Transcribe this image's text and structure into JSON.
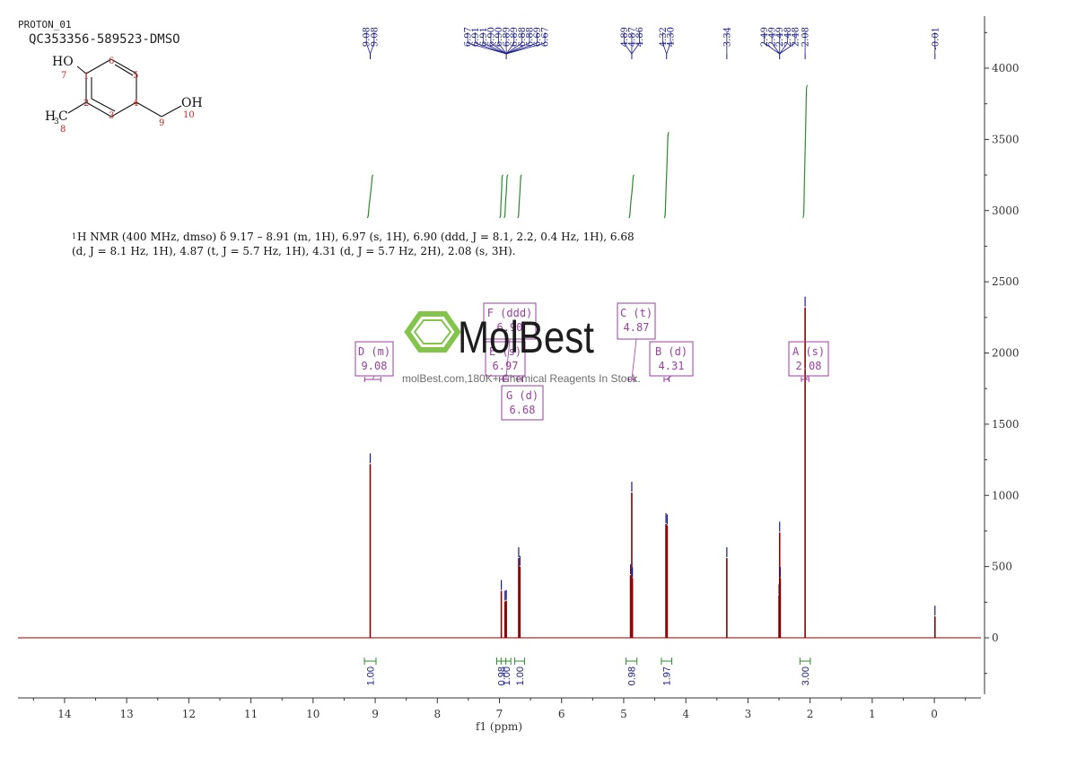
{
  "header": {
    "experiment": "PROTON_01",
    "sample": "QC353356-589523-DMSO"
  },
  "structure": {
    "atoms": [
      {
        "label": "HO",
        "num": "7"
      },
      {
        "label": "1",
        "num": ""
      },
      {
        "label": "6",
        "num": ""
      },
      {
        "label": "5",
        "num": ""
      },
      {
        "label": "4",
        "num": ""
      },
      {
        "label": "3",
        "num": ""
      },
      {
        "label": "2",
        "num": ""
      },
      {
        "label": "9",
        "num": ""
      },
      {
        "label": "OH",
        "num": "10"
      },
      {
        "label": "H",
        "sub": "3",
        "tail": "C",
        "num": "8"
      }
    ]
  },
  "nmr_text": {
    "line1_sup": "1",
    "line1": "H NMR (400 MHz, dmso) δ 9.17 – 8.91 (m, 1H), 6.97 (s, 1H), 6.90 (ddd, J = 8.1, 2.2, 0.4 Hz, 1H), 6.68",
    "line2": "(d, J = 8.1 Hz, 1H), 4.87 (t, J = 5.7 Hz, 1H), 4.31 (d, J = 5.7 Hz, 2H), 2.08 (s, 3H)."
  },
  "watermark": {
    "brand": "MolBest",
    "tagline": "molBest.com,180K+ Chemical Reagents In Stock."
  },
  "colors": {
    "spectrum": "#8b0000",
    "peak_label": "#1a1a8c",
    "integral": "#2e8b2e",
    "multiplet_box": "#9b3fa0",
    "axis": "#333333",
    "watermark_green": "#7dc242"
  },
  "chart_data": {
    "type": "line",
    "title": "",
    "xlabel": "f1 (ppm)",
    "ylabel": "",
    "xlim": [
      14.75,
      -0.75
    ],
    "x_reversed": true,
    "ylim": [
      -400,
      4350
    ],
    "xticks": [
      14,
      13,
      12,
      11,
      10,
      9,
      8,
      7,
      6,
      5,
      4,
      3,
      2,
      1,
      0
    ],
    "yticks": [
      0,
      500,
      1000,
      1500,
      2000,
      2500,
      3000,
      3500,
      4000
    ],
    "peaks": [
      {
        "ppm": 9.08,
        "height": 1220
      },
      {
        "ppm": 6.97,
        "height": 330
      },
      {
        "ppm": 6.91,
        "height": 255
      },
      {
        "ppm": 6.89,
        "height": 260
      },
      {
        "ppm": 6.69,
        "height": 560
      },
      {
        "ppm": 6.67,
        "height": 500
      },
      {
        "ppm": 4.89,
        "height": 440
      },
      {
        "ppm": 4.87,
        "height": 1020
      },
      {
        "ppm": 4.86,
        "height": 420
      },
      {
        "ppm": 4.32,
        "height": 800
      },
      {
        "ppm": 4.3,
        "height": 790
      },
      {
        "ppm": 3.34,
        "height": 560
      },
      {
        "ppm": 2.5,
        "height": 300
      },
      {
        "ppm": 2.49,
        "height": 740
      },
      {
        "ppm": 2.48,
        "height": 420
      },
      {
        "ppm": 2.08,
        "height": 2320
      },
      {
        "ppm": -0.01,
        "height": 150
      }
    ],
    "peak_label_groups": [
      {
        "labels": [
          "9.08",
          "9.08"
        ],
        "target": 9.08
      },
      {
        "labels": [
          "6.97",
          "6.91",
          "6.91",
          "6.90",
          "6.90",
          "6.89",
          "6.89",
          "6.88",
          "6.88",
          "6.69",
          "6.67"
        ],
        "target": 6.89
      },
      {
        "labels": [
          "4.89",
          "4.87",
          "4.86"
        ],
        "target": 4.87
      },
      {
        "labels": [
          "4.32",
          "4.30"
        ],
        "target": 4.31
      },
      {
        "labels": [
          "3.34"
        ],
        "target": 3.34
      },
      {
        "labels": [
          "2.49",
          "2.49",
          "2.49",
          "2.48",
          "2.48"
        ],
        "target": 2.49
      },
      {
        "labels": [
          "2.08"
        ],
        "target": 2.08
      },
      {
        "labels": [
          "-0.01"
        ],
        "target": -0.01
      }
    ],
    "integrals": [
      {
        "from": 9.13,
        "to": 9.03,
        "value": "1.00",
        "y_start": 2950,
        "y_end": 3250
      },
      {
        "from": 7.0,
        "to": 6.94,
        "value": "0.98",
        "y_start": 2950,
        "y_end": 3250
      },
      {
        "from": 6.93,
        "to": 6.86,
        "value": "1.00",
        "y_start": 2950,
        "y_end": 3250
      },
      {
        "from": 6.71,
        "to": 6.64,
        "value": "1.00",
        "y_start": 2950,
        "y_end": 3250
      },
      {
        "from": 4.92,
        "to": 4.83,
        "value": "0.98",
        "y_start": 2950,
        "y_end": 3250
      },
      {
        "from": 4.35,
        "to": 4.27,
        "value": "1.97",
        "y_start": 2950,
        "y_end": 3550
      },
      {
        "from": 2.12,
        "to": 2.04,
        "value": "3.00",
        "y_start": 2950,
        "y_end": 3880
      }
    ],
    "multiplets": [
      {
        "letter": "A",
        "mult": "s",
        "shift": "2.08",
        "from": 2.14,
        "to": 2.02
      },
      {
        "letter": "B",
        "mult": "d",
        "shift": "4.31",
        "from": 4.35,
        "to": 4.27
      },
      {
        "letter": "C",
        "mult": "t",
        "shift": "4.87",
        "from": 4.92,
        "to": 4.82
      },
      {
        "letter": "D",
        "mult": "m",
        "shift": "9.08",
        "from": 9.17,
        "to": 8.91
      },
      {
        "letter": "E",
        "mult": "s",
        "shift": "6.97",
        "from": 7.0,
        "to": 6.94
      },
      {
        "letter": "F",
        "mult": "ddd",
        "shift": "6.90",
        "from": 6.93,
        "to": 6.86
      },
      {
        "letter": "G",
        "mult": "d",
        "shift": "6.68",
        "from": 6.71,
        "to": 6.64
      }
    ]
  }
}
